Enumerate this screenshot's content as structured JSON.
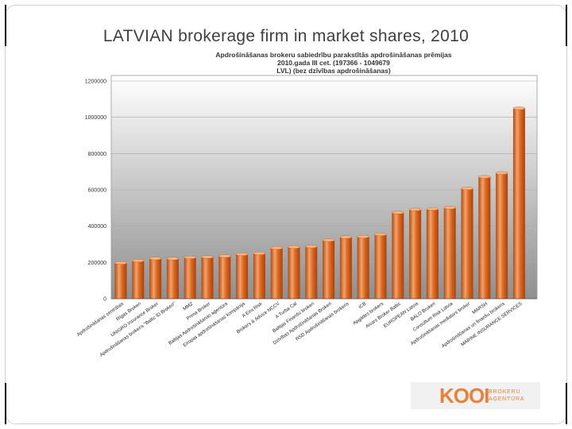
{
  "slide": {
    "title": "LATVIAN brokerage firm in market shares, 2010"
  },
  "logo": {
    "mark": "KOOI",
    "line1": "BROKERU",
    "line2": "AĢENTŪRA"
  },
  "chart_data": {
    "type": "bar",
    "title": "Apdrošināšanas brokeru sabiedrību parakstītās apdrošināšanas prēmijas 2010.gada III cet. (197366 - 1049679 LVL) (bez dzīvības apdrošināšanas)",
    "title_lines": [
      "Apdrošināšanas brokeru sabiedrību parakstītās apdrošināšanas prēmijas",
      "2010.gada III cet. (197366 - 1049679",
      "LVL) (bez dzīvības apdrošināšanas)"
    ],
    "categories": [
      "Apdrošināšanas centrālais",
      "Rīgas Brokeri",
      "UNIGRO Insurance Broker",
      "Apdrošināšanas brokeris \"Baltic ID Brokeri\"",
      "MMZ",
      "Prima Broker",
      "Baltijas Apdrošināšanas aģentūra",
      "Eiropas apdrošināšanas kompānija",
      "A Eiro Risk",
      "Brokers & Advice NCCV",
      "A Turba Cal",
      "Baltijas Finanšu brokeri",
      "Dzīvības Apdrošināšanas Brokeri",
      "RSD Apdrošināšanas brokeris",
      "ICB",
      "Apgādes brokers",
      "Aivars Broker Baltic",
      "EUROPEAN Latvia",
      "BALO Brokeri",
      "Consultum Risk Latvia",
      "Apdrošināšanas mediators broker",
      "MARSH",
      "Apdrošināšanas un finanšu brokeris",
      "MARINE INSURANCE SERVICES"
    ],
    "values": [
      197366,
      210000,
      222000,
      221000,
      228000,
      230000,
      235000,
      245000,
      250000,
      280000,
      285000,
      288000,
      323000,
      340000,
      342000,
      355000,
      475000,
      492000,
      495000,
      502000,
      608000,
      672000,
      693000,
      1049679
    ],
    "y_ticks": [
      "0",
      "200000",
      "400000",
      "600000",
      "800000",
      "1000000",
      "1200000"
    ],
    "ylim": [
      0,
      1200000
    ],
    "grid": true,
    "legend": "none",
    "colors": {
      "bar": "#e06a22",
      "bar_light": "#f2a36a",
      "bar_dark": "#b34a10",
      "plot_bg_top": "#ffffff",
      "plot_bg_bottom": "#8f8f8f"
    }
  }
}
